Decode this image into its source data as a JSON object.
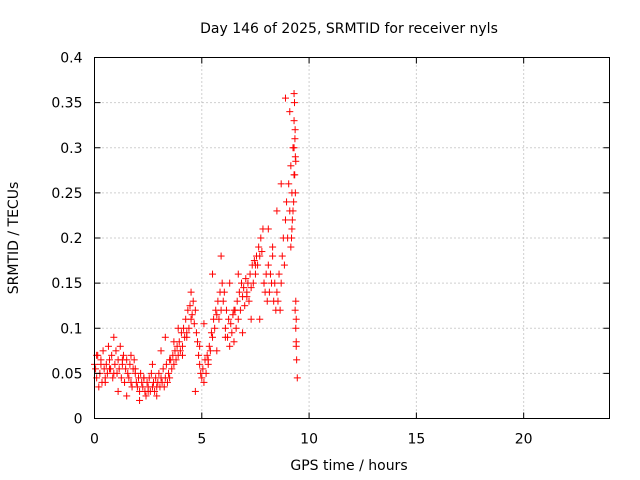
{
  "chart_data": {
    "type": "scatter",
    "title": "Day 146 of 2025, SRMTID for receiver nyls",
    "xlabel": "GPS time / hours",
    "ylabel": "SRMTID / TECUs",
    "xlim": [
      0,
      24
    ],
    "ylim": [
      0,
      0.4
    ],
    "xticks": [
      0,
      5,
      10,
      15,
      20
    ],
    "xtick_labels": [
      "0",
      "5",
      "10",
      "15",
      "20"
    ],
    "yticks": [
      0,
      0.05,
      0.1,
      0.15,
      0.2,
      0.25,
      0.3,
      0.35,
      0.4
    ],
    "ytick_labels": [
      "0",
      "0.05",
      "0.1",
      "0.15",
      "0.2",
      "0.25",
      "0.3",
      "0.35",
      "0.4"
    ],
    "grid": true,
    "marker": "+",
    "marker_color": "#ff0000",
    "series": [
      {
        "name": "SRMTID",
        "x": [
          0.0,
          0.05,
          0.1,
          0.15,
          0.2,
          0.25,
          0.3,
          0.35,
          0.4,
          0.45,
          0.5,
          0.55,
          0.6,
          0.65,
          0.7,
          0.75,
          0.8,
          0.85,
          0.9,
          0.95,
          1.0,
          1.05,
          1.1,
          1.15,
          1.2,
          1.25,
          1.3,
          1.35,
          1.4,
          1.45,
          1.5,
          1.55,
          1.6,
          1.65,
          1.7,
          1.75,
          1.8,
          1.85,
          1.9,
          1.95,
          2.0,
          2.05,
          2.1,
          2.15,
          2.2,
          2.25,
          2.3,
          2.35,
          2.4,
          2.45,
          2.5,
          2.55,
          2.6,
          2.65,
          2.7,
          2.75,
          2.8,
          2.85,
          2.9,
          2.95,
          3.0,
          3.05,
          3.1,
          3.15,
          3.2,
          3.25,
          3.3,
          3.35,
          3.4,
          3.45,
          3.5,
          3.55,
          3.6,
          3.65,
          3.7,
          3.75,
          3.8,
          3.85,
          3.9,
          3.95,
          4.0,
          4.05,
          4.1,
          4.15,
          4.2,
          4.25,
          4.3,
          4.35,
          4.4,
          4.45,
          4.5,
          4.55,
          4.6,
          4.65,
          4.7,
          4.75,
          4.8,
          4.85,
          4.9,
          4.95,
          5.0,
          5.05,
          5.1,
          5.15,
          5.2,
          5.25,
          5.3,
          5.35,
          5.4,
          5.45,
          5.5,
          5.55,
          5.6,
          5.65,
          5.7,
          5.75,
          5.8,
          5.85,
          5.9,
          5.95,
          6.0,
          6.05,
          6.1,
          6.15,
          6.2,
          6.25,
          6.3,
          6.35,
          6.4,
          6.45,
          6.5,
          6.55,
          6.6,
          6.65,
          6.7,
          6.75,
          6.8,
          6.85,
          6.9,
          6.95,
          7.0,
          7.05,
          7.1,
          7.15,
          7.2,
          7.25,
          7.3,
          7.35,
          7.4,
          7.45,
          7.5,
          7.55,
          7.6,
          7.65,
          7.7,
          7.75,
          7.8,
          7.85,
          7.9,
          7.95,
          8.0,
          8.05,
          8.1,
          8.15,
          8.2,
          8.25,
          8.3,
          8.35,
          8.4,
          8.45,
          8.5,
          8.55,
          8.6,
          8.65,
          8.7,
          8.75,
          8.8,
          8.85,
          8.9,
          8.95,
          9.0,
          9.05,
          9.1,
          9.15,
          9.2,
          9.25,
          9.3,
          9.35,
          9.4,
          9.45,
          0.1,
          0.3,
          0.5,
          0.7,
          0.9,
          1.1,
          1.3,
          1.5,
          1.7,
          1.9,
          2.1,
          2.3,
          2.5,
          2.7,
          2.9,
          3.1,
          3.3,
          3.5,
          3.7,
          3.9,
          4.1,
          4.3,
          4.5,
          4.7,
          4.9,
          5.1,
          5.3,
          5.5,
          5.7,
          5.9,
          6.1,
          6.3,
          6.5,
          6.7,
          6.9,
          7.1,
          7.3,
          7.5,
          7.7,
          7.9,
          8.1,
          8.3,
          8.5,
          8.7,
          8.9,
          9.1,
          9.3,
          9.3,
          9.32,
          9.34,
          9.36,
          9.38,
          9.3,
          9.33,
          9.36,
          9.28,
          9.25,
          9.22,
          9.2,
          9.18,
          9.15,
          9.35,
          9.38,
          9.4,
          9.42,
          9.4,
          9.38
        ],
        "y": [
          0.06,
          0.055,
          0.045,
          0.07,
          0.035,
          0.05,
          0.065,
          0.04,
          0.075,
          0.055,
          0.045,
          0.06,
          0.05,
          0.08,
          0.065,
          0.055,
          0.07,
          0.045,
          0.09,
          0.06,
          0.075,
          0.05,
          0.065,
          0.055,
          0.08,
          0.045,
          0.06,
          0.07,
          0.04,
          0.055,
          0.065,
          0.05,
          0.045,
          0.06,
          0.07,
          0.035,
          0.055,
          0.065,
          0.05,
          0.04,
          0.035,
          0.045,
          0.03,
          0.05,
          0.04,
          0.035,
          0.045,
          0.03,
          0.025,
          0.04,
          0.035,
          0.045,
          0.03,
          0.05,
          0.035,
          0.04,
          0.03,
          0.045,
          0.035,
          0.04,
          0.05,
          0.035,
          0.045,
          0.04,
          0.055,
          0.035,
          0.045,
          0.06,
          0.04,
          0.05,
          0.045,
          0.065,
          0.055,
          0.07,
          0.06,
          0.075,
          0.065,
          0.08,
          0.07,
          0.085,
          0.075,
          0.095,
          0.08,
          0.1,
          0.09,
          0.11,
          0.095,
          0.12,
          0.1,
          0.125,
          0.11,
          0.115,
          0.13,
          0.105,
          0.12,
          0.095,
          0.085,
          0.07,
          0.06,
          0.05,
          0.045,
          0.055,
          0.04,
          0.065,
          0.05,
          0.07,
          0.06,
          0.08,
          0.075,
          0.095,
          0.09,
          0.11,
          0.1,
          0.12,
          0.115,
          0.13,
          0.11,
          0.14,
          0.12,
          0.15,
          0.13,
          0.14,
          0.1,
          0.12,
          0.09,
          0.11,
          0.08,
          0.105,
          0.095,
          0.115,
          0.085,
          0.12,
          0.1,
          0.13,
          0.11,
          0.14,
          0.12,
          0.15,
          0.135,
          0.145,
          0.125,
          0.155,
          0.14,
          0.15,
          0.13,
          0.16,
          0.145,
          0.17,
          0.15,
          0.175,
          0.16,
          0.18,
          0.17,
          0.19,
          0.18,
          0.2,
          0.185,
          0.21,
          0.15,
          0.14,
          0.16,
          0.13,
          0.17,
          0.14,
          0.16,
          0.15,
          0.18,
          0.13,
          0.15,
          0.12,
          0.14,
          0.13,
          0.16,
          0.12,
          0.15,
          0.18,
          0.2,
          0.17,
          0.22,
          0.24,
          0.2,
          0.26,
          0.23,
          0.28,
          0.25,
          0.3,
          0.27,
          0.32,
          0.085,
          0.045,
          0.07,
          0.06,
          0.04,
          0.055,
          0.05,
          0.03,
          0.065,
          0.025,
          0.04,
          0.055,
          0.02,
          0.045,
          0.03,
          0.06,
          0.025,
          0.075,
          0.09,
          0.065,
          0.085,
          0.1,
          0.07,
          0.09,
          0.14,
          0.03,
          0.08,
          0.105,
          0.065,
          0.16,
          0.075,
          0.18,
          0.09,
          0.15,
          0.12,
          0.16,
          0.095,
          0.135,
          0.11,
          0.17,
          0.11,
          0.15,
          0.21,
          0.19,
          0.23,
          0.26,
          0.355,
          0.34,
          0.36,
          0.33,
          0.35,
          0.31,
          0.29,
          0.285,
          0.3,
          0.27,
          0.25,
          0.24,
          0.23,
          0.22,
          0.21,
          0.2,
          0.19,
          0.12,
          0.1,
          0.08,
          0.065,
          0.11,
          0.13
        ]
      }
    ]
  }
}
